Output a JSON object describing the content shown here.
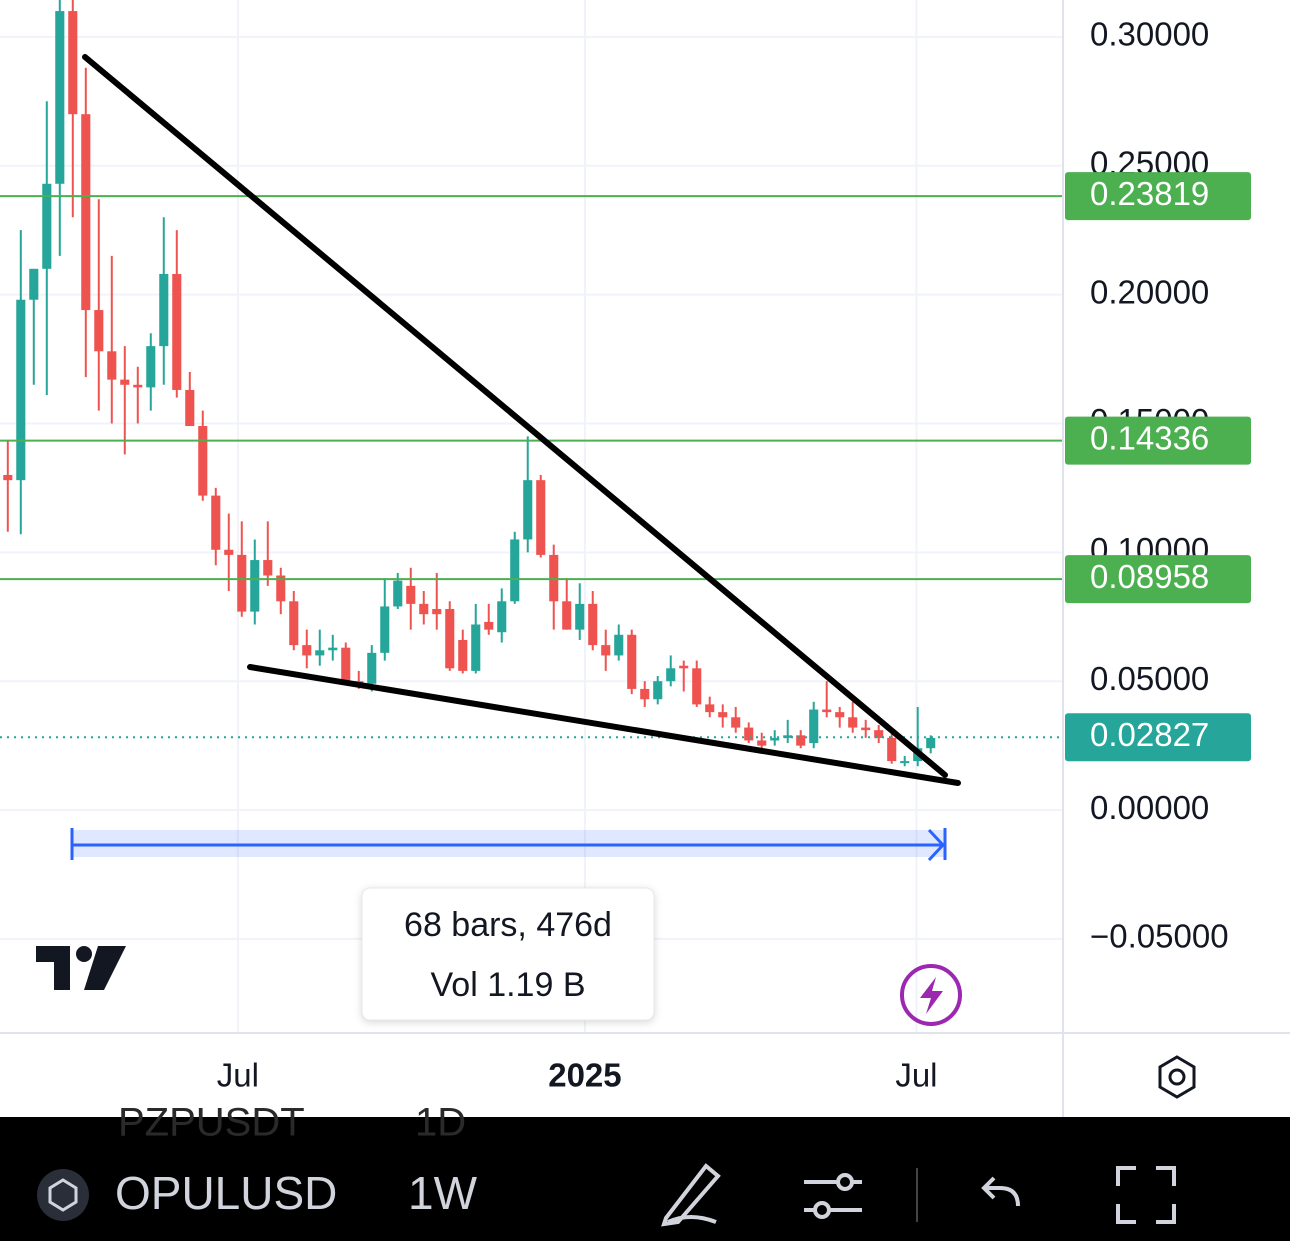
{
  "chart_data": {
    "type": "candlestick",
    "up_color": "#26a69a",
    "down_color": "#ef5350",
    "level_color": "#4caf50",
    "last_color": "#26a69a",
    "open": [
      0.13,
      0.128,
      0.198,
      0.21,
      0.243,
      0.31,
      0.27,
      0.194,
      0.178,
      0.167,
      0.165,
      0.164,
      0.18,
      0.208,
      0.163,
      0.149,
      0.122,
      0.101,
      0.099,
      0.077,
      0.097,
      0.091,
      0.081,
      0.064,
      0.06,
      0.062,
      0.063,
      0.05,
      0.049,
      0.061,
      0.079,
      0.087,
      0.08,
      0.078,
      0.078,
      0.066,
      0.054,
      0.073,
      0.069,
      0.081,
      0.105,
      0.128,
      0.099,
      0.081,
      0.07,
      0.08,
      0.064,
      0.06,
      0.068,
      0.047,
      0.043,
      0.05,
      0.056,
      0.055,
      0.041,
      0.038,
      0.036,
      0.032,
      0.027,
      0.027,
      0.028,
      0.029,
      0.026,
      0.039,
      0.038,
      0.036,
      0.032,
      0.031,
      0.028,
      0.019,
      0.019,
      0.024
    ],
    "high": [
      0.143,
      0.225,
      0.21,
      0.275,
      0.32,
      0.32,
      0.288,
      0.237,
      0.215,
      0.18,
      0.172,
      0.185,
      0.23,
      0.225,
      0.17,
      0.155,
      0.125,
      0.115,
      0.112,
      0.105,
      0.112,
      0.094,
      0.085,
      0.07,
      0.07,
      0.068,
      0.065,
      0.054,
      0.064,
      0.09,
      0.092,
      0.094,
      0.085,
      0.092,
      0.081,
      0.07,
      0.08,
      0.08,
      0.086,
      0.108,
      0.145,
      0.13,
      0.103,
      0.09,
      0.088,
      0.085,
      0.07,
      0.072,
      0.07,
      0.05,
      0.052,
      0.06,
      0.058,
      0.058,
      0.044,
      0.041,
      0.04,
      0.034,
      0.03,
      0.031,
      0.035,
      0.031,
      0.042,
      0.05,
      0.04,
      0.042,
      0.035,
      0.033,
      0.03,
      0.021,
      0.04,
      0.029
    ],
    "low": [
      0.108,
      0.107,
      0.165,
      0.161,
      0.215,
      0.23,
      0.168,
      0.155,
      0.15,
      0.138,
      0.15,
      0.155,
      0.165,
      0.16,
      0.15,
      0.12,
      0.095,
      0.085,
      0.075,
      0.072,
      0.087,
      0.076,
      0.062,
      0.055,
      0.056,
      0.058,
      0.049,
      0.047,
      0.046,
      0.058,
      0.078,
      0.07,
      0.072,
      0.07,
      0.054,
      0.053,
      0.053,
      0.068,
      0.065,
      0.08,
      0.1,
      0.098,
      0.07,
      0.07,
      0.066,
      0.062,
      0.054,
      0.058,
      0.045,
      0.04,
      0.041,
      0.048,
      0.046,
      0.04,
      0.036,
      0.032,
      0.03,
      0.026,
      0.023,
      0.025,
      0.026,
      0.024,
      0.024,
      0.036,
      0.032,
      0.03,
      0.028,
      0.026,
      0.018,
      0.017,
      0.017,
      0.022
    ],
    "close": [
      0.128,
      0.198,
      0.21,
      0.243,
      0.31,
      0.27,
      0.194,
      0.178,
      0.167,
      0.165,
      0.164,
      0.18,
      0.208,
      0.163,
      0.149,
      0.122,
      0.101,
      0.099,
      0.077,
      0.097,
      0.091,
      0.081,
      0.064,
      0.06,
      0.062,
      0.063,
      0.05,
      0.049,
      0.061,
      0.079,
      0.089,
      0.08,
      0.076,
      0.076,
      0.055,
      0.054,
      0.072,
      0.07,
      0.081,
      0.105,
      0.128,
      0.099,
      0.081,
      0.07,
      0.08,
      0.064,
      0.06,
      0.068,
      0.047,
      0.043,
      0.05,
      0.055,
      0.055,
      0.041,
      0.038,
      0.036,
      0.032,
      0.027,
      0.025,
      0.028,
      0.029,
      0.025,
      0.039,
      0.038,
      0.036,
      0.032,
      0.031,
      0.028,
      0.019,
      0.019,
      0.024,
      0.028
    ],
    "xlim": [
      -0.6,
      81.1
    ],
    "xticks": [
      {
        "value": 17.7,
        "label": "Jul"
      },
      {
        "value": 44.4,
        "label": "2025"
      },
      {
        "value": 69.9,
        "label": "Jul"
      }
    ],
    "ylim": [
      -0.0865,
      0.3143
    ],
    "yticks": [
      {
        "value": 0.3,
        "label": "0.30000"
      },
      {
        "value": 0.25,
        "label": "0.25000"
      },
      {
        "value": 0.2,
        "label": "0.20000"
      },
      {
        "value": 0.15,
        "label": "0.15000"
      },
      {
        "value": 0.1,
        "label": "0.10000"
      },
      {
        "value": 0.05,
        "label": "0.05000"
      },
      {
        "value": 0,
        "label": "0.00000"
      },
      {
        "value": -0.05,
        "label": "−0.05000"
      }
    ],
    "levels": [
      0.23819,
      0.14336,
      0.08958
    ],
    "last_price": 0.02827,
    "measure": [
      "68 bars, 476d",
      "Vol 1.19 B"
    ]
  },
  "toolbar": {
    "symbol": "OPULUSD",
    "interval": "1W",
    "ghost_symbol": "PZPUSDT",
    "ghost_interval": "1D"
  }
}
